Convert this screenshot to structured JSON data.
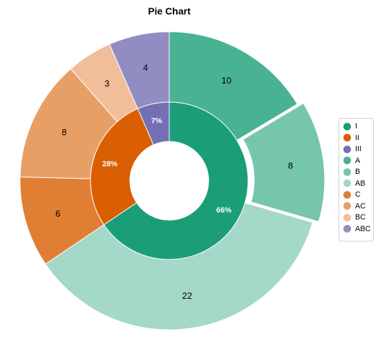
{
  "chart_data": {
    "type": "pie",
    "title": "Pie Chart",
    "inner": [
      {
        "name": "I",
        "value": 40,
        "percent_label": "66%",
        "color": "#1b9e77"
      },
      {
        "name": "II",
        "value": 17,
        "percent_label": "28%",
        "color": "#d95f02"
      },
      {
        "name": "III",
        "value": 4,
        "percent_label": "7%",
        "color": "#7570b3"
      }
    ],
    "outer": [
      {
        "name": "A",
        "value": 10,
        "parent": "I",
        "color": "#49b292"
      },
      {
        "name": "B",
        "value": 8,
        "parent": "I",
        "color": "#76c6ad",
        "exploded": true
      },
      {
        "name": "AB",
        "value": 22,
        "parent": "I",
        "color": "#a4d8c9"
      },
      {
        "name": "C",
        "value": 6,
        "parent": "II",
        "color": "#e07f34"
      },
      {
        "name": "AC",
        "value": 8,
        "parent": "II",
        "color": "#e89f66"
      },
      {
        "name": "BC",
        "value": 3,
        "parent": "II",
        "color": "#f0bf99"
      },
      {
        "name": "ABC",
        "value": 4,
        "parent": "III",
        "color": "#918dc2"
      }
    ],
    "legend": {
      "placement": "right",
      "items": [
        {
          "label": "I",
          "color": "#1b9e77"
        },
        {
          "label": "II",
          "color": "#d95f02"
        },
        {
          "label": "III",
          "color": "#7570b3"
        },
        {
          "label": "A",
          "color": "#49b292"
        },
        {
          "label": "B",
          "color": "#76c6ad"
        },
        {
          "label": "AB",
          "color": "#a4d8c9"
        },
        {
          "label": "C",
          "color": "#e07f34"
        },
        {
          "label": "AC",
          "color": "#e89f66"
        },
        {
          "label": "BC",
          "color": "#f0bf99"
        },
        {
          "label": "ABC",
          "color": "#918dc2"
        }
      ]
    }
  }
}
